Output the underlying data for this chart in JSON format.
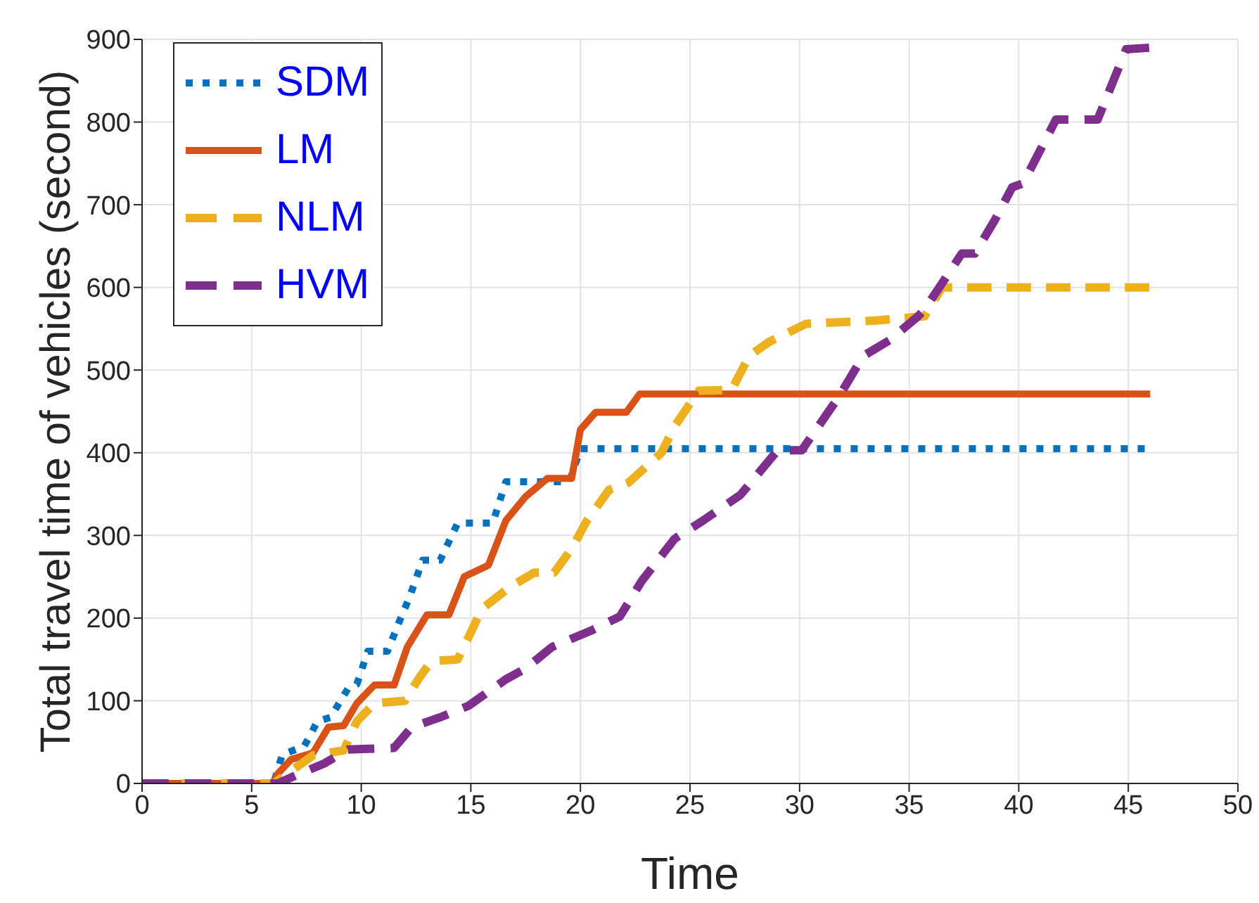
{
  "chart_data": {
    "type": "line",
    "xlabel": "Time",
    "ylabel": "Total travel time of vehicles (second)",
    "xlim": [
      0,
      50
    ],
    "xticks": [
      0,
      5,
      10,
      15,
      20,
      25,
      30,
      35,
      40,
      45,
      50
    ],
    "ylim": [
      0,
      900
    ],
    "yticks": [
      0,
      100,
      200,
      300,
      400,
      500,
      600,
      700,
      800,
      900
    ],
    "grid": true,
    "legend": "top left",
    "marker": "none",
    "series": [
      {
        "name": "SDM",
        "color": "#0072bd",
        "line_style": "dotted",
        "x": [
          0,
          6,
          6.4,
          7.4,
          8.0,
          8.6,
          9.4,
          9.8,
          10.3,
          11.2,
          11.8,
          12.2,
          12.8,
          13.6,
          14.4,
          16.0,
          16.6,
          19.5,
          20,
          46
        ],
        "values": [
          0,
          0,
          35,
          45,
          75,
          80,
          115,
          120,
          160,
          160,
          200,
          225,
          270,
          270,
          315,
          315,
          365,
          365,
          405,
          405
        ]
      },
      {
        "name": "LM",
        "color": "#d95319",
        "line_style": "solid",
        "x": [
          0,
          6,
          6.2,
          6.8,
          7.8,
          8.5,
          9.2,
          9.8,
          10.6,
          11.5,
          12.1,
          13,
          14,
          14.7,
          15.8,
          16.6,
          17.5,
          18.5,
          19.6,
          20,
          20.7,
          22.1,
          22.7,
          46
        ],
        "values": [
          0,
          0,
          12,
          29,
          37,
          68,
          70,
          97,
          119,
          119,
          165,
          204,
          204,
          250,
          264,
          318,
          347,
          369,
          369,
          428,
          449,
          449,
          471,
          471
        ]
      },
      {
        "name": "NLM",
        "color": "#edb120",
        "line_style": "dashed",
        "x": [
          0,
          6,
          6.8,
          7.8,
          9.2,
          9.8,
          10.6,
          12.0,
          12.6,
          13.2,
          14.4,
          14.9,
          15.5,
          16.8,
          17.9,
          18.8,
          19.6,
          20.3,
          21.3,
          22.2,
          23.7,
          24.3,
          25.4,
          26.9,
          27.7,
          28.6,
          30.3,
          33.5,
          35.7,
          36.5,
          46
        ],
        "values": [
          0,
          0,
          15,
          34,
          40,
          75,
          97,
          100,
          126,
          148,
          150,
          177,
          211,
          238,
          255,
          255,
          284,
          318,
          355,
          364,
          400,
          432,
          475,
          476,
          517,
          534,
          556,
          560,
          565,
          600,
          600
        ]
      },
      {
        "name": "HVM",
        "color": "#7e2f8e",
        "line_style": "dashed",
        "x": [
          0,
          6.2,
          7.2,
          8.3,
          9.4,
          11.5,
          12.3,
          13.6,
          14.9,
          16.6,
          17.5,
          18.7,
          20.5,
          21.8,
          22.8,
          24.3,
          25.6,
          27.3,
          29,
          30.1,
          31.8,
          32.9,
          34.1,
          35.4,
          35.7,
          37.4,
          38.0,
          38.9,
          39.7,
          40.2,
          41.7,
          43.6,
          44.9,
          46
        ],
        "values": [
          0,
          0,
          12,
          24,
          41,
          43,
          68,
          80,
          94,
          126,
          139,
          165,
          185,
          202,
          245,
          296,
          318,
          349,
          403,
          403,
          468,
          517,
          536,
          565,
          573,
          641,
          641,
          681,
          721,
          726,
          803,
          803,
          888,
          890
        ]
      }
    ]
  }
}
